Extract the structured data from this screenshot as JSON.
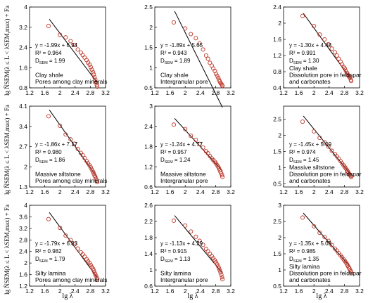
{
  "figure": {
    "xlabel": "lg λ",
    "ylabel": "lg N̄SEM(λ ≤ L < λSEM,max) + Fa",
    "marker_color": "#c0392b",
    "line_color": "#000000"
  },
  "chart_data": [
    {
      "type": "scatter",
      "row": 0,
      "col": 0,
      "xlim": [
        1.2,
        3.2
      ],
      "ylim": [
        0.8,
        4
      ],
      "xticks": [
        "1.2",
        "1.6",
        "2",
        "2.4",
        "2.8",
        "3.2"
      ],
      "yticks": [
        "0.8",
        "1.6",
        "2.4",
        "3.2",
        "4"
      ],
      "fit": {
        "slope": -1.99,
        "intercept": 6.94,
        "x_range": [
          1.72,
          2.98
        ]
      },
      "eq": "y = -1.99x + 6.94",
      "r2": "R² = 0.964",
      "d": "1.99",
      "labels": [
        "Clay shale",
        "Pores among clay minerals"
      ],
      "x": [
        1.7,
        2.0,
        2.15,
        2.28,
        2.38,
        2.47,
        2.55,
        2.6,
        2.65,
        2.7,
        2.74,
        2.78,
        2.81,
        2.84,
        2.87,
        2.89,
        2.91,
        2.93,
        2.95,
        2.97,
        2.98
      ],
      "y": [
        3.25,
        2.9,
        2.8,
        2.65,
        2.5,
        2.32,
        2.2,
        2.1,
        2.0,
        1.9,
        1.8,
        1.72,
        1.62,
        1.52,
        1.42,
        1.33,
        1.22,
        1.12,
        1.02,
        0.92,
        0.85
      ]
    },
    {
      "type": "scatter",
      "row": 0,
      "col": 1,
      "xlim": [
        1.2,
        3.2
      ],
      "ylim": [
        0.5,
        2.5
      ],
      "xticks": [
        "1.2",
        "1.6",
        "2",
        "2.4",
        "2.8",
        "3.2"
      ],
      "yticks": [
        "0.5",
        "1",
        "1.5",
        "2",
        "2.5"
      ],
      "fit": {
        "slope": -1.89,
        "intercept": 5.65,
        "x_range": [
          1.72,
          2.98
        ]
      },
      "eq": "y = -1.89x + 5.65",
      "r2": "R² = 0.943",
      "d": "1.89",
      "labels": [
        "Clay shale",
        "Intergranular pore"
      ],
      "x": [
        1.7,
        2.0,
        2.15,
        2.28,
        2.38,
        2.47,
        2.55,
        2.6,
        2.65,
        2.7,
        2.74,
        2.78,
        2.81,
        2.84,
        2.87,
        2.89,
        2.91,
        2.93,
        2.95,
        2.97,
        2.98
      ],
      "y": [
        2.12,
        1.97,
        1.83,
        1.73,
        1.6,
        1.45,
        1.3,
        1.22,
        1.12,
        1.05,
        0.98,
        0.92,
        0.85,
        0.8,
        0.75,
        0.7,
        0.66,
        0.62,
        0.6,
        0.57,
        0.55
      ]
    },
    {
      "type": "scatter",
      "row": 0,
      "col": 2,
      "xlim": [
        1.2,
        3.2
      ],
      "ylim": [
        0.4,
        2.4
      ],
      "xticks": [
        "1.2",
        "1.6",
        "2",
        "2.4",
        "2.8",
        "3.2"
      ],
      "yticks": [
        "0.4",
        "0.8",
        "1.2",
        "1.6",
        "2",
        "2.4"
      ],
      "fit": {
        "slope": -1.3,
        "intercept": 4.48,
        "x_range": [
          1.72,
          2.98
        ]
      },
      "eq": "y = -1.30x + 4.48",
      "r2": "R² = 0.991",
      "d": "1.30",
      "labels": [
        "Clay shale",
        "Dissolution pore in feldspar",
        "and carbonates"
      ],
      "x": [
        1.7,
        2.0,
        2.15,
        2.28,
        2.38,
        2.47,
        2.55,
        2.6,
        2.65,
        2.7,
        2.74,
        2.78,
        2.81,
        2.84,
        2.87,
        2.89,
        2.91,
        2.93,
        2.95,
        2.97,
        2.98
      ],
      "y": [
        2.18,
        1.93,
        1.72,
        1.6,
        1.48,
        1.37,
        1.28,
        1.2,
        1.12,
        1.05,
        0.98,
        0.92,
        0.88,
        0.82,
        0.77,
        0.72,
        0.7,
        0.67,
        0.65,
        0.6,
        0.57
      ]
    },
    {
      "type": "scatter",
      "row": 1,
      "col": 0,
      "xlim": [
        1.2,
        3.2
      ],
      "ylim": [
        1.3,
        4.1
      ],
      "xticks": [
        "1.2",
        "1.6",
        "2",
        "2.4",
        "2.8",
        "3.2"
      ],
      "yticks": [
        "1.3",
        "2",
        "2.7",
        "3.4",
        "4.1"
      ],
      "fit": {
        "slope": -1.86,
        "intercept": 7.17,
        "x_range": [
          1.72,
          2.98
        ]
      },
      "eq": "y = -1.86x + 7.17",
      "r2": "R² = 0.980",
      "d": "1.86",
      "labels": [
        "Massive siltstone",
        "Pores among clay minerals"
      ],
      "x": [
        1.7,
        2.0,
        2.15,
        2.28,
        2.38,
        2.47,
        2.55,
        2.6,
        2.65,
        2.7,
        2.74,
        2.78,
        2.81,
        2.84,
        2.87,
        2.89,
        2.91,
        2.93,
        2.95,
        2.97,
        2.98
      ],
      "y": [
        3.75,
        3.42,
        3.12,
        2.95,
        2.8,
        2.62,
        2.48,
        2.4,
        2.3,
        2.2,
        2.12,
        2.05,
        1.98,
        1.9,
        1.83,
        1.77,
        1.7,
        1.65,
        1.58,
        1.52,
        1.47
      ]
    },
    {
      "type": "scatter",
      "row": 1,
      "col": 1,
      "xlim": [
        1.2,
        3.2
      ],
      "ylim": [
        0.6,
        3
      ],
      "xticks": [
        "1.2",
        "1.6",
        "2",
        "2.4",
        "2.8",
        "3.2"
      ],
      "yticks": [
        "0.6",
        "1.2",
        "1.8",
        "2.4",
        "3"
      ],
      "fit": {
        "slope": -1.24,
        "intercept": 4.77,
        "x_range": [
          1.72,
          2.98
        ]
      },
      "eq": "y = -1.24x + 4.77",
      "r2": "R² = 0.957",
      "d": "1.24",
      "labels": [
        "Massive siltstone",
        "Intergranular pore"
      ],
      "x": [
        1.7,
        2.0,
        2.15,
        2.28,
        2.38,
        2.47,
        2.55,
        2.6,
        2.65,
        2.7,
        2.74,
        2.78,
        2.81,
        2.84,
        2.87,
        2.89,
        2.91,
        2.93,
        2.95,
        2.97,
        2.98
      ],
      "y": [
        2.45,
        2.32,
        2.12,
        2.0,
        1.88,
        1.77,
        1.66,
        1.6,
        1.52,
        1.45,
        1.4,
        1.35,
        1.3,
        1.25,
        1.2,
        1.15,
        1.1,
        1.05,
        1.0,
        0.95,
        0.9
      ]
    },
    {
      "type": "scatter",
      "row": 1,
      "col": 2,
      "xlim": [
        1.2,
        3.2
      ],
      "ylim": [
        0.4,
        2.9
      ],
      "xticks": [
        "1.2",
        "1.6",
        "2",
        "2.4",
        "2.8",
        "3.2"
      ],
      "yticks": [
        "0.5",
        "1",
        "1.5",
        "2",
        "2.5"
      ],
      "fit": {
        "slope": -1.45,
        "intercept": 5.09,
        "x_range": [
          1.72,
          2.98
        ]
      },
      "eq": "y = -1.45x + 5.09",
      "r2": "R² = 0.974",
      "d": "1.45",
      "labels": [
        "Massive siltstone",
        "Dissolution pore in feldspar",
        "and carbonates"
      ],
      "x": [
        1.7,
        2.0,
        2.15,
        2.28,
        2.38,
        2.47,
        2.55,
        2.6,
        2.65,
        2.7,
        2.74,
        2.78,
        2.81,
        2.84,
        2.87,
        2.89,
        2.91,
        2.93,
        2.95,
        2.97,
        2.98
      ],
      "y": [
        2.42,
        2.12,
        1.92,
        1.78,
        1.65,
        1.52,
        1.42,
        1.35,
        1.28,
        1.2,
        1.13,
        1.07,
        1.02,
        0.97,
        0.92,
        0.88,
        0.84,
        0.8,
        0.77,
        0.74,
        0.71
      ]
    },
    {
      "type": "scatter",
      "row": 2,
      "col": 0,
      "xlim": [
        1.2,
        3.2
      ],
      "ylim": [
        1.2,
        4
      ],
      "xticks": [
        "1.2",
        "1.6",
        "2",
        "2.4",
        "2.8",
        "3.2"
      ],
      "yticks": [
        "1.2",
        "1.6",
        "2",
        "2.4",
        "2.8",
        "3.2",
        "3.6",
        "4"
      ],
      "fit": {
        "slope": -1.79,
        "intercept": 6.83,
        "x_range": [
          1.72,
          2.98
        ]
      },
      "eq": "y = -1.79x + 6.83",
      "r2": "R² = 0.982",
      "d": "1.79",
      "labels": [
        "Silty lamina",
        "Pores among clay minerals"
      ],
      "x": [
        1.7,
        2.0,
        2.15,
        2.28,
        2.38,
        2.47,
        2.55,
        2.6,
        2.65,
        2.7,
        2.74,
        2.78,
        2.81,
        2.84,
        2.87,
        2.89,
        2.91,
        2.93,
        2.95,
        2.97,
        2.98
      ],
      "y": [
        3.52,
        3.22,
        2.95,
        2.8,
        2.65,
        2.5,
        2.37,
        2.3,
        2.22,
        2.13,
        2.06,
        2.0,
        1.93,
        1.86,
        1.8,
        1.74,
        1.67,
        1.61,
        1.55,
        1.48,
        1.42
      ]
    },
    {
      "type": "scatter",
      "row": 2,
      "col": 1,
      "xlim": [
        1.2,
        3.2
      ],
      "ylim": [
        0.6,
        2.6
      ],
      "xticks": [
        "1.2",
        "1.6",
        "2",
        "2.4",
        "2.8",
        "3.2"
      ],
      "yticks": [
        "0.6",
        "1",
        "1.4",
        "1.8",
        "2.2",
        "2.6"
      ],
      "fit": {
        "slope": -1.13,
        "intercept": 4.29,
        "x_range": [
          1.72,
          2.98
        ]
      },
      "eq": "y = -1.13x + 4.29",
      "r2": "R² = 0.915",
      "d": "1.13",
      "labels": [
        "Silty lamina",
        "Intergranular pore"
      ],
      "x": [
        1.7,
        2.0,
        2.15,
        2.28,
        2.38,
        2.47,
        2.55,
        2.6,
        2.65,
        2.7,
        2.74,
        2.78,
        2.81,
        2.84,
        2.87,
        2.89,
        2.91,
        2.93,
        2.95,
        2.97,
        2.98
      ],
      "y": [
        2.22,
        2.1,
        1.95,
        1.82,
        1.72,
        1.62,
        1.52,
        1.46,
        1.4,
        1.34,
        1.29,
        1.24,
        1.19,
        1.14,
        1.09,
        1.04,
        0.99,
        0.94,
        0.88,
        0.82,
        0.77
      ]
    },
    {
      "type": "scatter",
      "row": 2,
      "col": 2,
      "xlim": [
        1.2,
        3.2
      ],
      "ylim": [
        0.5,
        3
      ],
      "xticks": [
        "1.2",
        "1.6",
        "2",
        "2.4",
        "2.8",
        "3.2"
      ],
      "yticks": [
        "0.5",
        "1",
        "1.5",
        "2",
        "2.5",
        "3"
      ],
      "fit": {
        "slope": -1.35,
        "intercept": 5.08,
        "x_range": [
          1.72,
          2.98
        ]
      },
      "eq": "y = -1.35x + 5.08",
      "r2": "R² = 0.985",
      "d": "1.35",
      "labels": [
        "Silty lamina",
        "Dissolution pore in feldspar",
        "and carbonates"
      ],
      "x": [
        1.7,
        2.0,
        2.15,
        2.28,
        2.38,
        2.47,
        2.55,
        2.6,
        2.65,
        2.7,
        2.74,
        2.78,
        2.81,
        2.84,
        2.87,
        2.89,
        2.91,
        2.93,
        2.95,
        2.97,
        2.98
      ],
      "y": [
        2.62,
        2.35,
        2.15,
        2.02,
        1.9,
        1.77,
        1.66,
        1.6,
        1.52,
        1.45,
        1.39,
        1.33,
        1.28,
        1.23,
        1.18,
        1.13,
        1.09,
        1.05,
        1.0,
        0.96,
        0.92
      ]
    }
  ]
}
